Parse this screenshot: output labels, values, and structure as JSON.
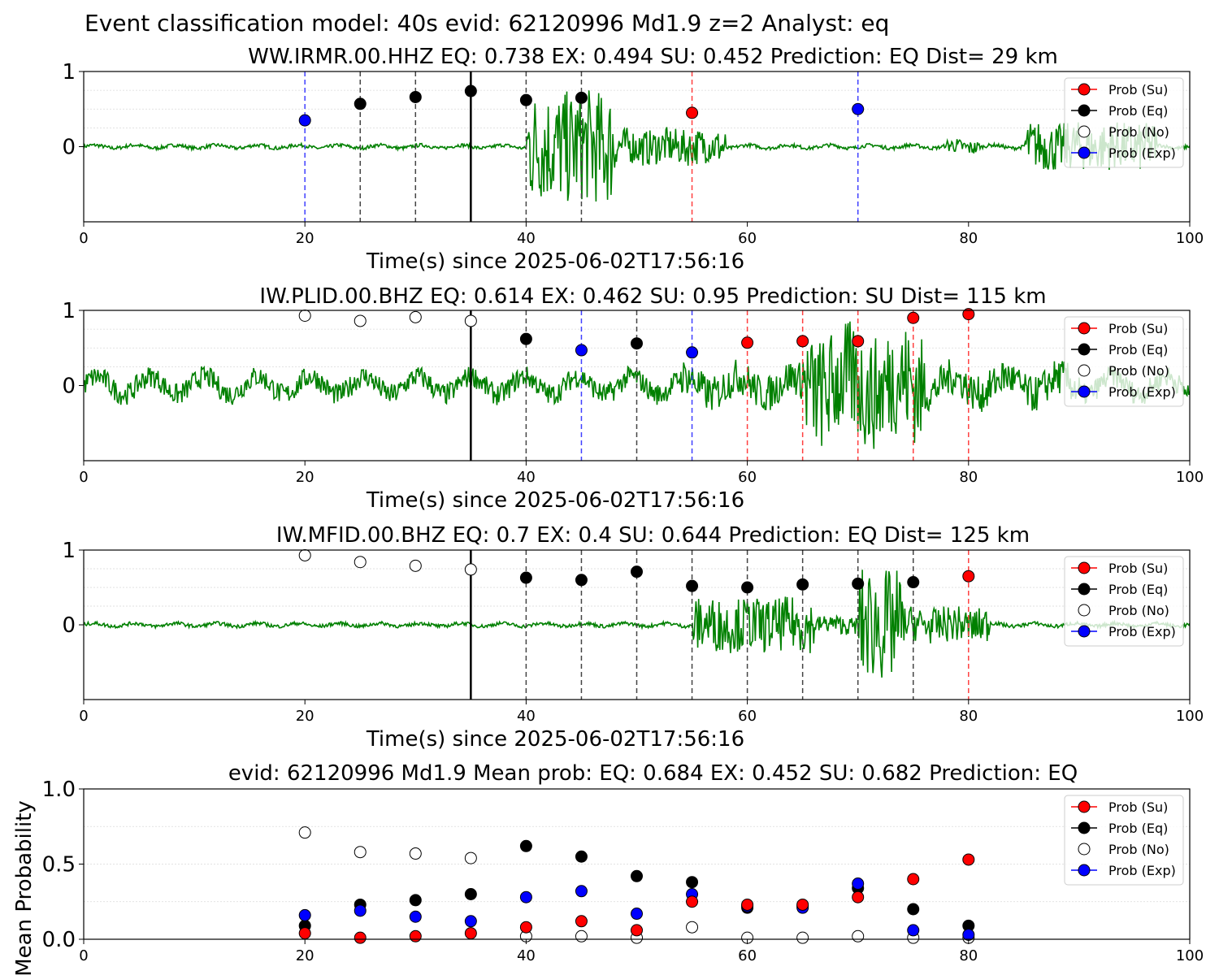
{
  "page_title": "Event classification model: 40s evid: 62120996 Md1.9 z=2 Analyst: eq",
  "colors": {
    "su": "#ff0000",
    "eq": "#000000",
    "no": "#ffffff",
    "exp": "#0000ff",
    "waveform": "#008000",
    "grid": "#d9d9d9"
  },
  "chart_data": [
    {
      "type": "scatter",
      "title": "WW.IRMR.00.HHZ   EQ: 0.738  EX: 0.494  SU: 0.452   Prediction: EQ    Dist= 29 km",
      "xlabel": "Time(s) since 2025-06-02T17:56:16",
      "ylabel": "",
      "xlim": [
        0,
        100
      ],
      "ylim": [
        -1,
        1
      ],
      "xticks": [
        "0",
        "20",
        "40",
        "60",
        "80",
        "100"
      ],
      "yticks": [
        "0",
        "1"
      ],
      "legend": [
        "Prob (Su)",
        "Prob (Eq)",
        "Prob (No)",
        "Prob (Exp)"
      ],
      "legend_position": "top-right",
      "waveform_color": "green",
      "arrival_line_x": 35,
      "signal_segments": [
        {
          "t0": 40,
          "t1": 48,
          "amp": 0.95
        },
        {
          "t0": 48,
          "t1": 58,
          "amp": 0.3
        },
        {
          "t0": 78,
          "t1": 81,
          "amp": 0.12
        },
        {
          "t0": 85,
          "t1": 97,
          "amp": 0.4
        }
      ],
      "window_lines": [
        {
          "x": 20,
          "class": "exp"
        },
        {
          "x": 25,
          "class": "eq"
        },
        {
          "x": 30,
          "class": "eq"
        },
        {
          "x": 40,
          "class": "eq"
        },
        {
          "x": 45,
          "class": "eq"
        },
        {
          "x": 55,
          "class": "su"
        },
        {
          "x": 70,
          "class": "exp"
        }
      ],
      "points": [
        {
          "x": 20,
          "y": 0.35,
          "class": "exp"
        },
        {
          "x": 25,
          "y": 0.57,
          "class": "eq"
        },
        {
          "x": 30,
          "y": 0.66,
          "class": "eq"
        },
        {
          "x": 35,
          "y": 0.74,
          "class": "eq"
        },
        {
          "x": 40,
          "y": 0.62,
          "class": "eq"
        },
        {
          "x": 45,
          "y": 0.65,
          "class": "eq"
        },
        {
          "x": 55,
          "y": 0.45,
          "class": "su"
        },
        {
          "x": 70,
          "y": 0.5,
          "class": "exp"
        }
      ]
    },
    {
      "type": "scatter",
      "title": "IW.PLID.00.BHZ   EQ: 0.614  EX: 0.462  SU: 0.95   Prediction: SU    Dist= 115 km",
      "xlabel": "Time(s) since 2025-06-02T17:56:16",
      "ylabel": "",
      "xlim": [
        0,
        100
      ],
      "ylim": [
        -1,
        1
      ],
      "xticks": [
        "0",
        "20",
        "40",
        "60",
        "80",
        "100"
      ],
      "yticks": [
        "0",
        "1"
      ],
      "legend": [
        "Prob (Su)",
        "Prob (Eq)",
        "Prob (No)",
        "Prob (Exp)"
      ],
      "legend_position": "top-right",
      "waveform_color": "green",
      "arrival_line_x": 35,
      "base_amp": 0.18,
      "signal_segments": [
        {
          "t0": 54,
          "t1": 65,
          "amp": 0.3
        },
        {
          "t0": 65,
          "t1": 76,
          "amp": 0.95
        },
        {
          "t0": 76,
          "t1": 90,
          "amp": 0.3
        }
      ],
      "window_lines": [
        {
          "x": 40,
          "class": "eq"
        },
        {
          "x": 45,
          "class": "exp"
        },
        {
          "x": 50,
          "class": "eq"
        },
        {
          "x": 55,
          "class": "exp"
        },
        {
          "x": 60,
          "class": "su"
        },
        {
          "x": 65,
          "class": "su"
        },
        {
          "x": 70,
          "class": "su"
        },
        {
          "x": 75,
          "class": "su"
        },
        {
          "x": 80,
          "class": "su"
        }
      ],
      "points": [
        {
          "x": 20,
          "y": 0.93,
          "class": "no"
        },
        {
          "x": 25,
          "y": 0.86,
          "class": "no"
        },
        {
          "x": 30,
          "y": 0.91,
          "class": "no"
        },
        {
          "x": 35,
          "y": 0.86,
          "class": "no"
        },
        {
          "x": 40,
          "y": 0.62,
          "class": "eq"
        },
        {
          "x": 45,
          "y": 0.47,
          "class": "exp"
        },
        {
          "x": 50,
          "y": 0.56,
          "class": "eq"
        },
        {
          "x": 55,
          "y": 0.44,
          "class": "exp"
        },
        {
          "x": 60,
          "y": 0.57,
          "class": "su"
        },
        {
          "x": 65,
          "y": 0.59,
          "class": "su"
        },
        {
          "x": 70,
          "y": 0.59,
          "class": "su"
        },
        {
          "x": 75,
          "y": 0.9,
          "class": "su"
        },
        {
          "x": 80,
          "y": 0.95,
          "class": "su"
        }
      ]
    },
    {
      "type": "scatter",
      "title": "IW.MFID.00.BHZ   EQ: 0.7  EX: 0.4  SU: 0.644   Prediction: EQ    Dist= 125 km",
      "xlabel": "Time(s) since 2025-06-02T17:56:16",
      "ylabel": "",
      "xlim": [
        0,
        100
      ],
      "ylim": [
        -1,
        1
      ],
      "xticks": [
        "0",
        "20",
        "40",
        "60",
        "80",
        "100"
      ],
      "yticks": [
        "0",
        "1"
      ],
      "legend": [
        "Prob (Su)",
        "Prob (Eq)",
        "Prob (No)",
        "Prob (Exp)"
      ],
      "legend_position": "top-right",
      "waveform_color": "green",
      "arrival_line_x": 35,
      "signal_segments": [
        {
          "t0": 55,
          "t1": 66,
          "amp": 0.45
        },
        {
          "t0": 66,
          "t1": 70,
          "amp": 0.15
        },
        {
          "t0": 70,
          "t1": 74,
          "amp": 0.95
        },
        {
          "t0": 74,
          "t1": 82,
          "amp": 0.3
        }
      ],
      "window_lines": [
        {
          "x": 40,
          "class": "eq"
        },
        {
          "x": 45,
          "class": "eq"
        },
        {
          "x": 50,
          "class": "eq"
        },
        {
          "x": 55,
          "class": "eq"
        },
        {
          "x": 60,
          "class": "eq"
        },
        {
          "x": 65,
          "class": "eq"
        },
        {
          "x": 70,
          "class": "eq"
        },
        {
          "x": 75,
          "class": "eq"
        },
        {
          "x": 80,
          "class": "su"
        }
      ],
      "points": [
        {
          "x": 20,
          "y": 0.93,
          "class": "no"
        },
        {
          "x": 25,
          "y": 0.84,
          "class": "no"
        },
        {
          "x": 30,
          "y": 0.79,
          "class": "no"
        },
        {
          "x": 35,
          "y": 0.74,
          "class": "no"
        },
        {
          "x": 40,
          "y": 0.63,
          "class": "eq"
        },
        {
          "x": 45,
          "y": 0.6,
          "class": "eq"
        },
        {
          "x": 50,
          "y": 0.71,
          "class": "eq"
        },
        {
          "x": 55,
          "y": 0.52,
          "class": "eq"
        },
        {
          "x": 60,
          "y": 0.5,
          "class": "eq"
        },
        {
          "x": 65,
          "y": 0.54,
          "class": "eq"
        },
        {
          "x": 70,
          "y": 0.55,
          "class": "eq"
        },
        {
          "x": 75,
          "y": 0.57,
          "class": "eq"
        },
        {
          "x": 80,
          "y": 0.65,
          "class": "su"
        }
      ]
    },
    {
      "type": "scatter",
      "title": "evid: 62120996  Md1.9   Mean prob:   EQ: 0.684  EX: 0.452  SU: 0.682   Prediction: EQ",
      "xlabel": "",
      "ylabel": "Mean Probability",
      "xlim": [
        0,
        100
      ],
      "ylim": [
        0,
        1
      ],
      "xticks": [
        "0",
        "20",
        "40",
        "60",
        "80",
        "100"
      ],
      "yticks": [
        "0.0",
        "0.5",
        "1.0"
      ],
      "legend": [
        "Prob (Su)",
        "Prob (Eq)",
        "Prob (No)",
        "Prob (Exp)"
      ],
      "legend_position": "top-right",
      "series": [
        {
          "name": "Prob (No)",
          "class": "no",
          "x": [
            20,
            25,
            30,
            35,
            40,
            45,
            50,
            55,
            60,
            65,
            70,
            75,
            80
          ],
          "values": [
            0.71,
            0.58,
            0.57,
            0.54,
            0.02,
            0.02,
            0.01,
            0.08,
            0.01,
            0.01,
            0.02,
            0.01,
            0.01
          ]
        },
        {
          "name": "Prob (Eq)",
          "class": "eq",
          "x": [
            20,
            25,
            30,
            35,
            40,
            45,
            50,
            55,
            60,
            65,
            70,
            75,
            80
          ],
          "values": [
            0.09,
            0.23,
            0.26,
            0.3,
            0.62,
            0.55,
            0.42,
            0.38,
            0.21,
            0.22,
            0.34,
            0.2,
            0.09
          ]
        },
        {
          "name": "Prob (Exp)",
          "class": "exp",
          "x": [
            20,
            25,
            30,
            35,
            40,
            45,
            50,
            55,
            60,
            65,
            70,
            75,
            80
          ],
          "values": [
            0.16,
            0.19,
            0.15,
            0.12,
            0.28,
            0.32,
            0.17,
            0.3,
            0.22,
            0.21,
            0.37,
            0.06,
            0.03
          ]
        },
        {
          "name": "Prob (Su)",
          "class": "su",
          "x": [
            20,
            25,
            30,
            35,
            40,
            45,
            50,
            55,
            60,
            65,
            70,
            75,
            80
          ],
          "values": [
            0.04,
            0.01,
            0.02,
            0.04,
            0.08,
            0.12,
            0.06,
            0.25,
            0.23,
            0.23,
            0.28,
            0.4,
            0.53
          ]
        }
      ]
    }
  ]
}
